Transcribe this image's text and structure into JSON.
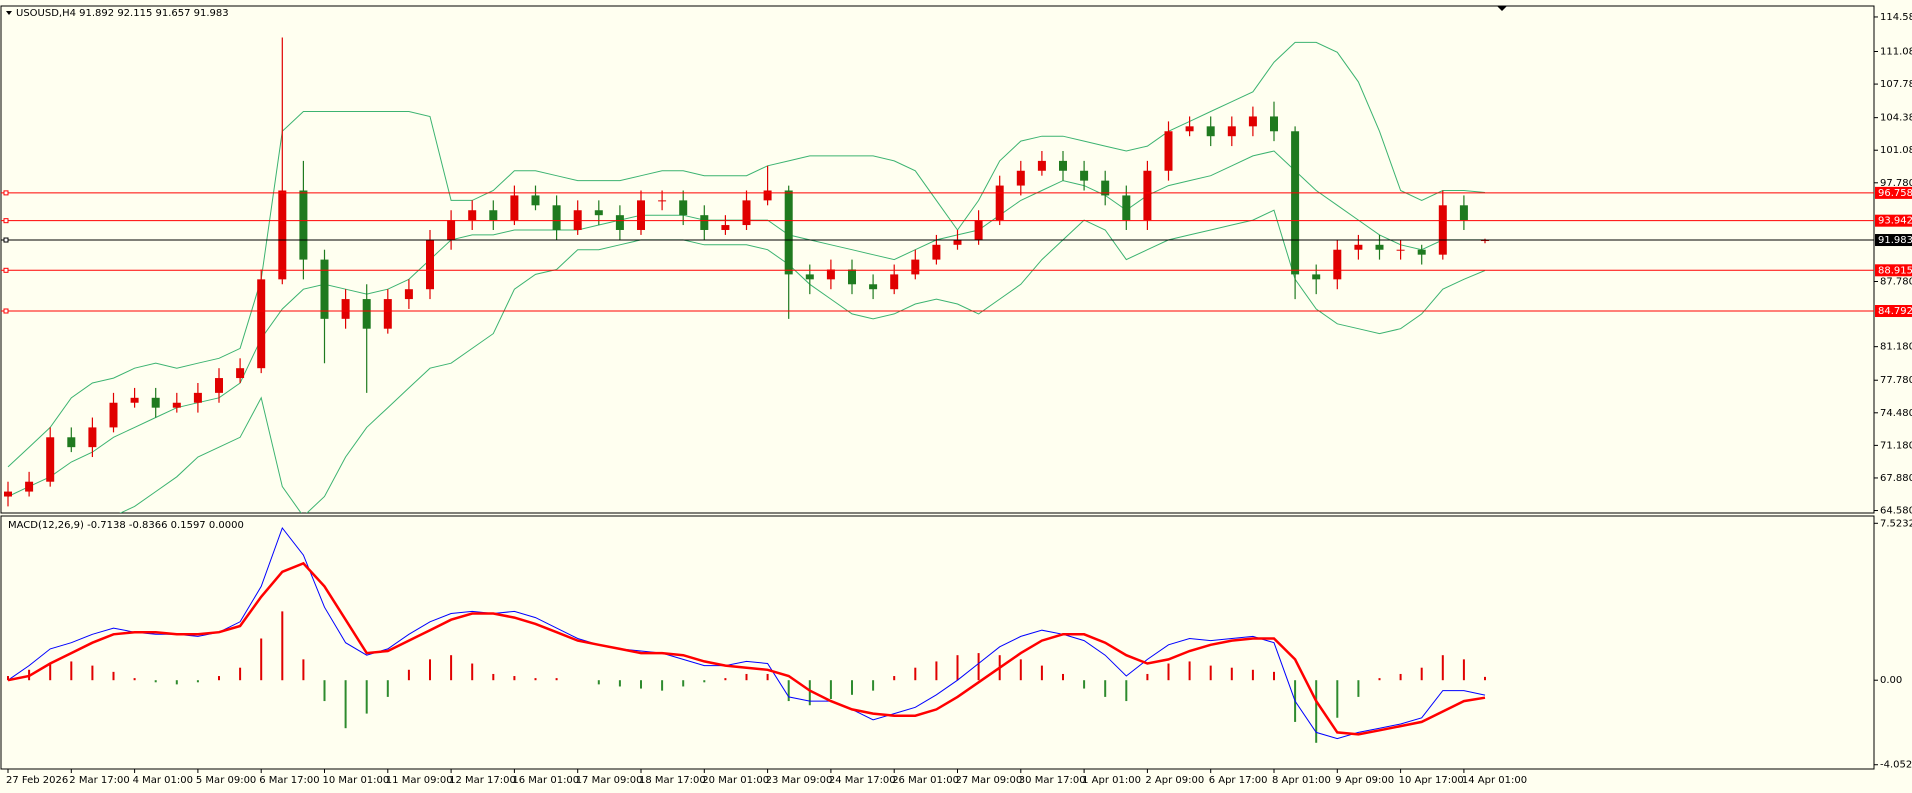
{
  "chart_data": [
    {
      "type": "candlestick",
      "title": "USOUSD,H4  91.892 92.115 91.657 91.983",
      "categories": [
        "27 Feb 2026",
        null,
        null,
        "2 Mar 17:00",
        null,
        null,
        "4 Mar 01:00",
        null,
        null,
        "5 Mar 09:00",
        null,
        null,
        "6 Mar 17:00",
        null,
        null,
        "10 Mar 01:00",
        null,
        null,
        "11 Mar 09:00",
        null,
        null,
        "12 Mar 17:00",
        null,
        null,
        "16 Mar 01:00",
        null,
        null,
        "17 Mar 09:00",
        null,
        null,
        "18 Mar 17:00",
        null,
        null,
        "20 Mar 01:00",
        null,
        null,
        "23 Mar 09:00",
        null,
        null,
        "24 Mar 17:00",
        null,
        null,
        "26 Mar 01:00",
        null,
        null,
        "27 Mar 09:00",
        null,
        null,
        "30 Mar 17:00",
        null,
        null,
        "1 Apr 01:00",
        null,
        null,
        "2 Apr 09:00",
        null,
        null,
        "6 Apr 17:00",
        null,
        null,
        "8 Apr 01:00",
        null,
        null,
        "9 Apr 09:00",
        null,
        null,
        "10 Apr 17:00",
        null,
        null,
        "14 Apr 01:00",
        null
      ],
      "open": [
        66,
        66.5,
        67.5,
        72,
        71,
        73,
        75.5,
        76,
        75,
        75.5,
        76.5,
        78,
        79,
        88,
        97,
        90,
        84,
        86,
        83,
        86,
        87,
        92,
        94,
        95,
        94,
        96.5,
        95.5,
        93,
        95,
        94.5,
        93,
        96,
        96,
        94.5,
        93,
        93.5,
        96,
        97,
        88.5,
        88,
        89,
        87.5,
        87,
        88.5,
        90,
        91.5,
        92,
        94,
        97.5,
        99,
        100,
        99,
        98,
        96.5,
        94,
        99,
        103,
        103.5,
        102.5,
        103.5,
        104.5,
        103,
        88.5,
        88,
        91,
        91.5,
        91,
        91,
        90.5,
        95.5,
        91.892
      ],
      "high": [
        67.5,
        68.5,
        73,
        73,
        74,
        76.5,
        77,
        77,
        76.5,
        77.5,
        79,
        80,
        89,
        112.5,
        100,
        91,
        87,
        87.5,
        87,
        88,
        93,
        95,
        96,
        96,
        97.5,
        97.5,
        96.5,
        96,
        96,
        95.5,
        97,
        97,
        97,
        95.5,
        94.5,
        97,
        99.5,
        97.5,
        89.5,
        90,
        90,
        88.5,
        89.5,
        91,
        92.5,
        93,
        95,
        98.5,
        100,
        101,
        101,
        100,
        99,
        97.5,
        100,
        104,
        104.5,
        104.5,
        104.5,
        105.5,
        106,
        103.5,
        89.5,
        92,
        92.5,
        92.5,
        92,
        91.5,
        97,
        96.5,
        92.115
      ],
      "low": [
        65,
        66,
        67,
        70.5,
        70,
        72.5,
        75,
        74,
        74.5,
        74.5,
        75.5,
        77.5,
        78.5,
        87.5,
        88,
        79.5,
        83,
        76.5,
        82.5,
        85,
        86,
        91,
        93,
        93,
        93.5,
        95,
        92,
        92.5,
        93.5,
        92,
        92.5,
        95,
        93.5,
        92,
        92.5,
        93,
        95.5,
        84,
        86.5,
        87,
        86.5,
        86,
        86.5,
        88,
        89.5,
        91,
        91.5,
        93.5,
        96.5,
        98.5,
        98,
        97,
        95.5,
        93,
        93,
        98,
        102.5,
        101.5,
        101.5,
        102.5,
        102,
        86,
        86.5,
        87,
        90,
        90,
        90,
        89.5,
        90,
        93,
        91.657
      ],
      "close": [
        66.5,
        67.5,
        72,
        71,
        73,
        75.5,
        76,
        75,
        75.5,
        76.5,
        78,
        79,
        88,
        97,
        90,
        84,
        86,
        83,
        86,
        87,
        92,
        94,
        95,
        94,
        96.5,
        95.5,
        93,
        95,
        94.5,
        93,
        96,
        96,
        94.5,
        93,
        93.5,
        96,
        97,
        88.5,
        88,
        89,
        87.5,
        87,
        88.5,
        90,
        91.5,
        92,
        94,
        97.5,
        99,
        100,
        99,
        98,
        96.5,
        94,
        99,
        103,
        103.5,
        102.5,
        103.5,
        104.5,
        103,
        88.5,
        88,
        91,
        91.5,
        91,
        91,
        90.5,
        95.5,
        94,
        91.983
      ],
      "up_color": "#e00000",
      "down_color": "#1f7a1f",
      "series": [
        {
          "color": "#3cb371",
          "values": [
            69,
            71,
            73,
            76,
            77.5,
            78,
            79,
            79.5,
            79,
            79.5,
            80,
            81,
            88,
            103,
            105,
            105,
            105,
            105,
            105,
            105,
            104.5,
            96,
            96,
            97,
            99,
            99,
            98.5,
            98,
            98,
            98,
            98.5,
            99,
            99,
            98.5,
            98.5,
            98.5,
            99.5,
            100,
            100.5,
            100.5,
            100.5,
            100.5,
            100,
            99,
            96,
            93,
            96,
            100,
            102,
            102.5,
            102.5,
            102,
            101.5,
            101,
            101.5,
            103,
            104,
            105,
            106,
            107,
            110,
            112,
            112,
            111,
            108,
            103,
            97,
            96,
            97,
            97,
            96.8
          ]
        },
        {
          "color": "#3cb371",
          "values": [
            66,
            67,
            68,
            69.5,
            70.5,
            72,
            73,
            74,
            75,
            75.5,
            76,
            77.5,
            82,
            85,
            87,
            87.5,
            87,
            86.5,
            87,
            88,
            90,
            92,
            92.5,
            92.5,
            93,
            93,
            93,
            93,
            93.5,
            94,
            94.5,
            94.5,
            94.5,
            94,
            94,
            94,
            94,
            92.5,
            92,
            91.5,
            91,
            90.5,
            90,
            91,
            92,
            92.5,
            93,
            94.5,
            96,
            97,
            98,
            97.5,
            96.5,
            95,
            96.5,
            97.5,
            98,
            98.5,
            99.5,
            100.5,
            101,
            99,
            97,
            95.5,
            94,
            92.5,
            91.5,
            91,
            92,
            92,
            92
          ]
        },
        {
          "color": "#3cb371",
          "values": [
            63,
            63,
            63,
            63,
            63,
            64,
            65,
            66.5,
            68,
            70,
            71,
            72,
            76,
            67,
            64,
            66,
            70,
            73,
            75,
            77,
            79,
            79.5,
            81,
            82.5,
            87,
            88.5,
            89,
            91,
            91,
            91.5,
            92,
            92,
            92,
            91.5,
            91.5,
            91.5,
            91,
            89.5,
            87.5,
            86,
            84.5,
            84,
            84.5,
            85.5,
            86,
            85.5,
            84.5,
            86,
            87.5,
            90,
            92,
            94,
            93,
            90,
            91,
            92,
            92.5,
            93,
            93.5,
            94,
            95,
            88,
            85,
            83.5,
            83,
            82.5,
            83,
            84.5,
            87,
            88,
            88.9
          ]
        }
      ],
      "levels": [
        {
          "value": 96.758,
          "color": "#ff0000"
        },
        {
          "value": 93.942,
          "color": "#ff0000"
        },
        {
          "value": 91.983,
          "color": "#000000"
        },
        {
          "value": 88.915,
          "color": "#ff0000"
        },
        {
          "value": 84.792,
          "color": "#ff0000"
        }
      ],
      "ylim": [
        64.33,
        115.69
      ],
      "yticks": [
        {
          "value": 114.58,
          "label": "114.580"
        },
        {
          "value": 111.08,
          "label": "111.080"
        },
        {
          "value": 107.78,
          "label": "107.780"
        },
        {
          "value": 104.38,
          "label": "104.380"
        },
        {
          "value": 101.08,
          "label": "101.080"
        },
        {
          "value": 97.78,
          "label": "97.780"
        },
        {
          "value": 87.78,
          "label": "87.780"
        },
        {
          "value": 81.18,
          "label": "81.180"
        },
        {
          "value": 77.78,
          "label": "77.780"
        },
        {
          "value": 74.48,
          "label": "74.480"
        },
        {
          "value": 71.18,
          "label": "71.180"
        },
        {
          "value": 67.88,
          "label": "67.880"
        },
        {
          "value": 64.58,
          "label": "64.580"
        }
      ]
    },
    {
      "type": "macd",
      "title": "MACD(12,26,9) -0.7138 -0.8366 0.1597 0.0000",
      "series": [
        {
          "color": "#0000ff",
          "width": 1,
          "values": [
            0,
            0.7,
            1.5,
            1.8,
            2.2,
            2.5,
            2.3,
            2.2,
            2.2,
            2.1,
            2.3,
            2.8,
            4.5,
            7.3,
            6,
            3.5,
            1.8,
            1.2,
            1.5,
            2.2,
            2.8,
            3.2,
            3.3,
            3.2,
            3.3,
            3.0,
            2.5,
            2.0,
            1.7,
            1.5,
            1.4,
            1.3,
            1.0,
            0.7,
            0.7,
            0.9,
            0.8,
            -0.8,
            -1.0,
            -1.0,
            -1.4,
            -1.9,
            -1.6,
            -1.3,
            -0.7,
            0,
            0.8,
            1.6,
            2.1,
            2.4,
            2.2,
            1.9,
            1.2,
            0.2,
            1.0,
            1.7,
            2.0,
            1.9,
            2.0,
            2.1,
            1.8,
            -1.0,
            -2.5,
            -2.8,
            -2.5,
            -2.3,
            -2.1,
            -1.8,
            -0.5,
            -0.5,
            -0.7138
          ]
        },
        {
          "color": "#ff0000",
          "width": 2.5,
          "values": [
            0,
            0.2,
            0.8,
            1.3,
            1.8,
            2.2,
            2.3,
            2.3,
            2.2,
            2.2,
            2.3,
            2.6,
            4.0,
            5.2,
            5.6,
            4.5,
            2.9,
            1.3,
            1.4,
            1.9,
            2.4,
            2.9,
            3.2,
            3.2,
            3.0,
            2.7,
            2.3,
            1.9,
            1.7,
            1.5,
            1.3,
            1.3,
            1.2,
            0.9,
            0.7,
            0.6,
            0.5,
            0.2,
            -0.5,
            -1.0,
            -1.4,
            -1.6,
            -1.7,
            -1.7,
            -1.4,
            -0.8,
            -0.1,
            0.6,
            1.3,
            1.9,
            2.2,
            2.2,
            1.8,
            1.2,
            0.8,
            1.0,
            1.4,
            1.7,
            1.9,
            2.0,
            2.0,
            1.0,
            -1.0,
            -2.5,
            -2.6,
            -2.4,
            -2.2,
            -2.0,
            -1.5,
            -1.0,
            -0.8366
          ]
        }
      ],
      "histogram": {
        "up_color": "#e00000",
        "down_color": "#2e8b2e",
        "values": [
          0.2,
          0.5,
          0.8,
          0.9,
          0.7,
          0.4,
          0.1,
          -0.1,
          -0.2,
          -0.1,
          0.2,
          0.6,
          2.0,
          3.3,
          1.0,
          -1.0,
          -2.3,
          -1.6,
          -0.8,
          0.5,
          1.0,
          1.2,
          0.8,
          0.3,
          0.2,
          0.1,
          0.1,
          0.0,
          -0.2,
          -0.3,
          -0.4,
          -0.5,
          -0.3,
          -0.1,
          0.1,
          0.3,
          0.3,
          -1.0,
          -1.2,
          -0.9,
          -0.7,
          -0.5,
          0.2,
          0.6,
          0.9,
          1.2,
          1.3,
          1.2,
          1.0,
          0.7,
          0.3,
          -0.4,
          -0.8,
          -1.0,
          0.3,
          0.8,
          0.9,
          0.7,
          0.6,
          0.5,
          0.4,
          -2.0,
          -3.0,
          -1.8,
          -0.8,
          0.1,
          0.3,
          0.6,
          1.2,
          1.0,
          0.1597
        ]
      },
      "ylim": [
        -4.257,
        7.873
      ],
      "yticks": [
        7.5232,
        {
          "value": 0,
          "label": "0.00"
        },
        -4.0526
      ]
    }
  ]
}
